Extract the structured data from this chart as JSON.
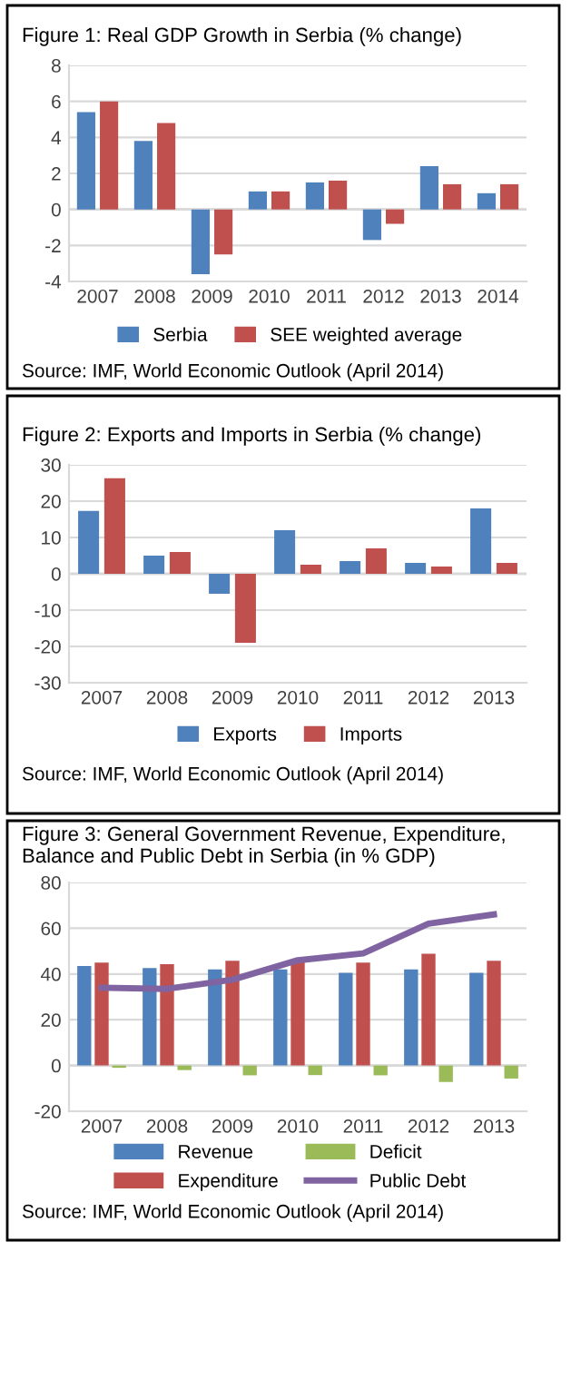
{
  "chart_data": [
    {
      "type": "bar",
      "title": "Figure 1: Real GDP Growth in Serbia (% change)",
      "categories": [
        "2007",
        "2008",
        "2009",
        "2010",
        "2011",
        "2012",
        "2013",
        "2014"
      ],
      "series": [
        {
          "name": "Serbia",
          "color": "#4f81bd",
          "values": [
            5.4,
            3.8,
            -3.6,
            1.0,
            1.5,
            -1.7,
            2.4,
            0.9
          ]
        },
        {
          "name": "SEE weighted average",
          "color": "#c0504d",
          "values": [
            6.0,
            4.8,
            -2.5,
            1.0,
            1.6,
            -0.8,
            1.4,
            1.4
          ]
        }
      ],
      "ylim": [
        -4,
        8
      ],
      "yticks": [
        -4,
        -2,
        0,
        2,
        4,
        6,
        8
      ],
      "grid": "y",
      "legend": "bottom",
      "annotations": [
        "Source: IMF, World Economic Outlook (April 2014)"
      ]
    },
    {
      "type": "bar",
      "title": "Figure 2: Exports and Imports in Serbia (% change)",
      "categories": [
        "2007",
        "2008",
        "2009",
        "2010",
        "2011",
        "2012",
        "2013"
      ],
      "series": [
        {
          "name": "Exports",
          "color": "#4f81bd",
          "values": [
            17.3,
            5.0,
            -5.5,
            12.0,
            3.5,
            3.0,
            18.0
          ]
        },
        {
          "name": "Imports",
          "color": "#c0504d",
          "values": [
            26.3,
            6.0,
            -19.0,
            2.5,
            7.0,
            2.0,
            3.0
          ]
        }
      ],
      "ylim": [
        -30,
        30
      ],
      "yticks": [
        -30,
        -20,
        -10,
        0,
        10,
        20,
        30
      ],
      "grid": "y",
      "legend": "bottom",
      "annotations": [
        "Source: IMF, World Economic Outlook (April 2014)"
      ]
    },
    {
      "type": "bar",
      "title": "Figure 3: General Government Revenue, Expenditure, Balance and Public Debt in Serbia (in % GDP)",
      "categories": [
        "2007",
        "2008",
        "2009",
        "2010",
        "2011",
        "2012",
        "2013"
      ],
      "series": [
        {
          "name": "Revenue",
          "color": "#4f81bd",
          "values": [
            43.5,
            42.6,
            42.0,
            42.0,
            40.5,
            42.0,
            40.5
          ]
        },
        {
          "name": "Expenditure",
          "color": "#c0504d",
          "values": [
            45.0,
            44.3,
            45.8,
            46.0,
            45.0,
            48.8,
            45.8
          ]
        },
        {
          "name": "Deficit",
          "color": "#9bbb59",
          "values": [
            -1.0,
            -2.0,
            -4.3,
            -4.2,
            -4.3,
            -7.2,
            -5.7
          ]
        },
        {
          "name": "Public Debt",
          "color": "#8064a2",
          "type": "line",
          "values": [
            34.0,
            33.5,
            37.5,
            46.0,
            49.0,
            62.0,
            66.0
          ]
        }
      ],
      "ylim": [
        -20,
        80
      ],
      "yticks": [
        -20,
        0,
        20,
        40,
        60,
        80
      ],
      "grid": "y",
      "legend": "bottom",
      "annotations": [
        "Source: IMF, World Economic Outlook (April 2014)"
      ]
    }
  ]
}
